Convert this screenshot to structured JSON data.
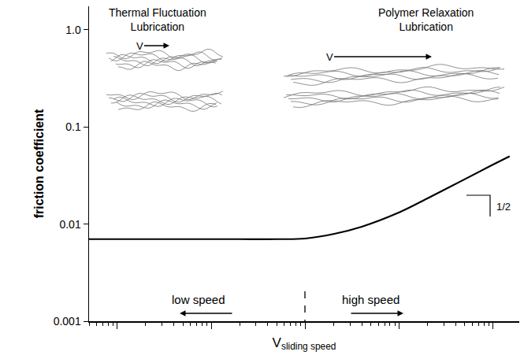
{
  "chart_data": {
    "type": "line",
    "xlabel": "V",
    "xlabel_sub": "sliding speed",
    "ylabel": "friction coefficient",
    "log": true,
    "grid": false,
    "tick_labels": "y",
    "xlim": [
      0.005,
      190
    ],
    "xticks": [
      0.01,
      0.1,
      1,
      10,
      100
    ],
    "ylim": [
      0.001,
      1.75
    ],
    "yticks": [
      0.001,
      0.01,
      0.1,
      {
        "value": 1,
        "label": "1.0"
      }
    ],
    "x": [
      0.005,
      0.05,
      0.2,
      0.5,
      1,
      2,
      4,
      10,
      20,
      50,
      100,
      150
    ],
    "values": [
      0.007,
      0.007,
      0.007,
      0.007,
      0.0071,
      0.0079,
      0.0094,
      0.0132,
      0.0184,
      0.029,
      0.041,
      0.05
    ],
    "color": "#000000",
    "line_style": "solid",
    "regimes": [
      {
        "title": "Thermal Fluctuation\nLubrication",
        "label": "low speed",
        "velocity": "V"
      },
      {
        "title": "Polymer Relaxation\nLubrication",
        "label": "high speed",
        "velocity": "V"
      }
    ],
    "slope_label": "1/2"
  }
}
